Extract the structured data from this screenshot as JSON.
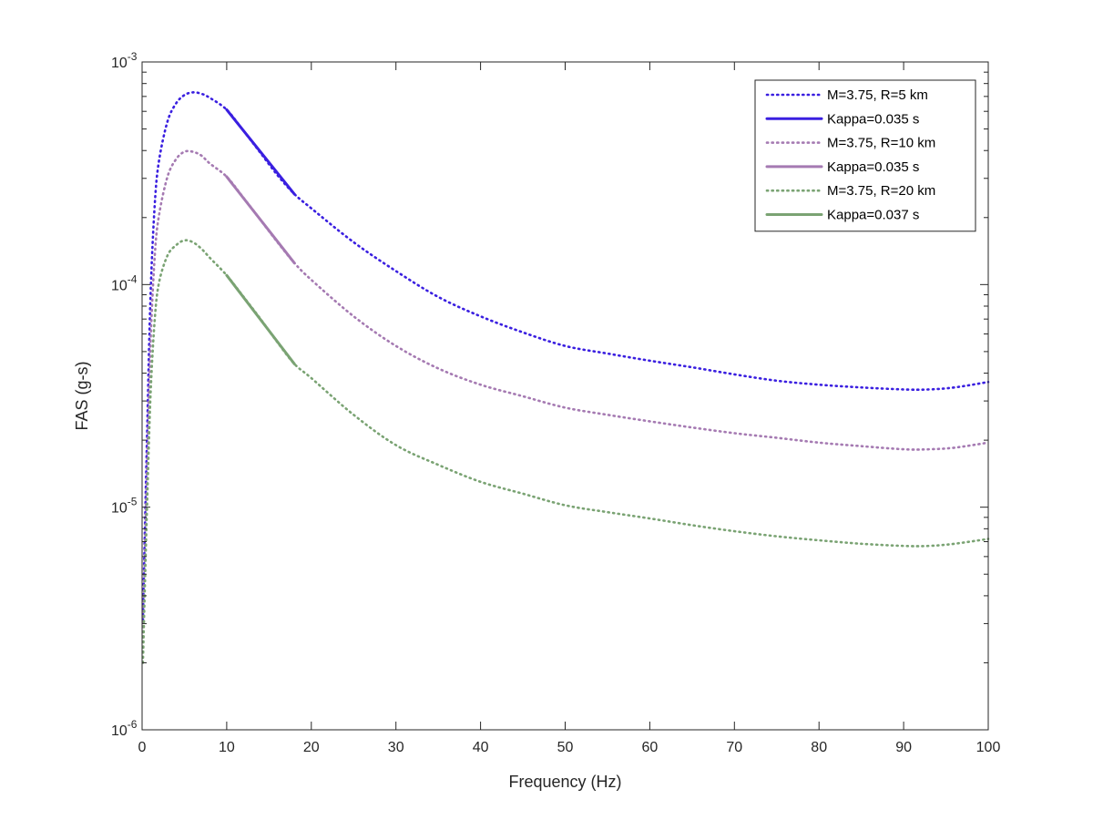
{
  "chart_data": {
    "type": "line",
    "title": "",
    "xlabel": "Frequency (Hz)",
    "ylabel": "FAS (g-s)",
    "xlim": [
      0,
      100
    ],
    "ylim": [
      1e-06,
      0.001
    ],
    "yscale": "log",
    "grid": false,
    "legend_position": "top-right",
    "x_ticks": [
      0,
      10,
      20,
      30,
      40,
      50,
      60,
      70,
      80,
      90,
      100
    ],
    "x_tick_labels": [
      "0",
      "10",
      "20",
      "30",
      "40",
      "50",
      "60",
      "70",
      "80",
      "90",
      "100"
    ],
    "y_ticks": [
      {
        "value": 1e-06,
        "base": "10",
        "exp": "-6"
      },
      {
        "value": 1e-05,
        "base": "10",
        "exp": "-5"
      },
      {
        "value": 0.0001,
        "base": "10",
        "exp": "-4"
      },
      {
        "value": 0.001,
        "base": "10",
        "exp": "-3"
      }
    ],
    "series": [
      {
        "name": "M=3.75, R=5 km",
        "color": "#3a1fe0",
        "style": "dotted",
        "points": [
          [
            0.1,
            3.1e-06
          ],
          [
            0.3,
            7e-06
          ],
          [
            0.6,
            2.2e-05
          ],
          [
            1,
            9e-05
          ],
          [
            1.5,
            0.00023
          ],
          [
            2,
            0.00036
          ],
          [
            3,
            0.00054
          ],
          [
            4,
            0.00065
          ],
          [
            5,
            0.00071
          ],
          [
            6,
            0.00073
          ],
          [
            7,
            0.00072
          ],
          [
            8,
            0.00069
          ],
          [
            10,
            0.00061
          ],
          [
            12,
            0.00049
          ],
          [
            14,
            0.00039
          ],
          [
            16,
            0.00031
          ],
          [
            18,
            0.000255
          ],
          [
            20,
            0.00022
          ],
          [
            25,
            0.000155
          ],
          [
            30,
            0.000115
          ],
          [
            35,
            8.8e-05
          ],
          [
            40,
            7.2e-05
          ],
          [
            45,
            6.1e-05
          ],
          [
            50,
            5.3e-05
          ],
          [
            55,
            4.9e-05
          ],
          [
            60,
            4.55e-05
          ],
          [
            65,
            4.25e-05
          ],
          [
            70,
            3.95e-05
          ],
          [
            75,
            3.7e-05
          ],
          [
            80,
            3.55e-05
          ],
          [
            85,
            3.45e-05
          ],
          [
            90,
            3.38e-05
          ],
          [
            93,
            3.38e-05
          ],
          [
            96,
            3.45e-05
          ],
          [
            100,
            3.65e-05
          ]
        ]
      },
      {
        "name": "Kappa=0.035 s",
        "color": "#3a1fe0",
        "style": "solid",
        "points": [
          [
            10,
            0.00061
          ],
          [
            18,
            0.000255
          ]
        ]
      },
      {
        "name": "M=3.75, R=10 km",
        "color": "#a57ab2",
        "style": "dotted",
        "points": [
          [
            0.1,
            2.6e-06
          ],
          [
            0.3,
            5.5e-06
          ],
          [
            0.6,
            1.6e-05
          ],
          [
            1,
            5.5e-05
          ],
          [
            1.5,
            0.000135
          ],
          [
            2,
            0.000205
          ],
          [
            3,
            0.000305
          ],
          [
            4,
            0.000365
          ],
          [
            5,
            0.000395
          ],
          [
            6,
            0.000395
          ],
          [
            7,
            0.00038
          ],
          [
            8,
            0.00035
          ],
          [
            10,
            0.000305
          ],
          [
            12,
            0.000245
          ],
          [
            14,
            0.000195
          ],
          [
            16,
            0.000155
          ],
          [
            18,
            0.000125
          ],
          [
            20,
            0.000105
          ],
          [
            25,
            7.2e-05
          ],
          [
            30,
            5.3e-05
          ],
          [
            35,
            4.2e-05
          ],
          [
            40,
            3.55e-05
          ],
          [
            45,
            3.15e-05
          ],
          [
            50,
            2.8e-05
          ],
          [
            55,
            2.6e-05
          ],
          [
            60,
            2.43e-05
          ],
          [
            65,
            2.28e-05
          ],
          [
            70,
            2.15e-05
          ],
          [
            75,
            2.05e-05
          ],
          [
            80,
            1.95e-05
          ],
          [
            85,
            1.88e-05
          ],
          [
            90,
            1.82e-05
          ],
          [
            93,
            1.82e-05
          ],
          [
            96,
            1.85e-05
          ],
          [
            100,
            1.95e-05
          ]
        ]
      },
      {
        "name": "Kappa=0.035 s",
        "color": "#a57ab2",
        "style": "solid",
        "points": [
          [
            10,
            0.000305
          ],
          [
            18,
            0.000125
          ]
        ]
      },
      {
        "name": "M=3.75, R=20 km",
        "color": "#7aa373",
        "style": "dotted",
        "points": [
          [
            0.1,
            2e-06
          ],
          [
            0.3,
            4e-06
          ],
          [
            0.6,
            1.05e-05
          ],
          [
            1,
            3.2e-05
          ],
          [
            1.5,
            7e-05
          ],
          [
            2,
            0.000102
          ],
          [
            3,
            0.000135
          ],
          [
            4,
            0.00015
          ],
          [
            5,
            0.000158
          ],
          [
            6,
            0.000155
          ],
          [
            7,
            0.000145
          ],
          [
            8,
            0.000132
          ],
          [
            10,
            0.00011
          ],
          [
            12,
            8.8e-05
          ],
          [
            14,
            7e-05
          ],
          [
            16,
            5.5e-05
          ],
          [
            18,
            4.4e-05
          ],
          [
            20,
            3.8e-05
          ],
          [
            25,
            2.6e-05
          ],
          [
            30,
            1.9e-05
          ],
          [
            35,
            1.55e-05
          ],
          [
            40,
            1.3e-05
          ],
          [
            45,
            1.15e-05
          ],
          [
            50,
            1.02e-05
          ],
          [
            55,
            9.5e-06
          ],
          [
            60,
            8.9e-06
          ],
          [
            65,
            8.3e-06
          ],
          [
            70,
            7.8e-06
          ],
          [
            75,
            7.4e-06
          ],
          [
            80,
            7.1e-06
          ],
          [
            85,
            6.85e-06
          ],
          [
            90,
            6.7e-06
          ],
          [
            93,
            6.7e-06
          ],
          [
            96,
            6.85e-06
          ],
          [
            100,
            7.2e-06
          ]
        ]
      },
      {
        "name": "Kappa=0.037 s",
        "color": "#7aa373",
        "style": "solid",
        "points": [
          [
            10,
            0.00011
          ],
          [
            18,
            4.4e-05
          ]
        ]
      }
    ]
  }
}
